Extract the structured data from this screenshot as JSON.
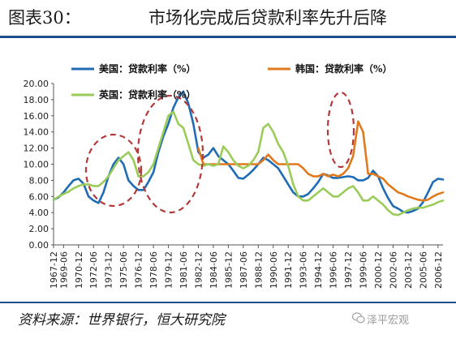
{
  "header": {
    "figure_label": "图表30：",
    "title": "市场化完成后贷款利率先升后降"
  },
  "footer": {
    "source": "资料来源：世界银行，恒大研究院",
    "watermark": "泽平宏观"
  },
  "chart_data": {
    "type": "line",
    "x": [
      "1967-12",
      "1968-12",
      "1969-06",
      "1969-12",
      "1970-06",
      "1970-12",
      "1971-06",
      "1971-12",
      "1972-06",
      "1972-12",
      "1973-06",
      "1973-12",
      "1974-06",
      "1974-12",
      "1975-06",
      "1975-12",
      "1976-06",
      "1976-12",
      "1977-06",
      "1977-12",
      "1978-06",
      "1978-12",
      "1979-06",
      "1979-12",
      "1980-06",
      "1980-12",
      "1981-06",
      "1981-12",
      "1982-06",
      "1982-12",
      "1983-06",
      "1983-12",
      "1984-06",
      "1984-12",
      "1985-06",
      "1985-12",
      "1986-06",
      "1986-12",
      "1987-06",
      "1987-12",
      "1988-06",
      "1988-12",
      "1989-06",
      "1989-12",
      "1990-06",
      "1990-12",
      "1991-06",
      "1991-12",
      "1992-06",
      "1992-12",
      "1993-06",
      "1993-12",
      "1994-06",
      "1994-12",
      "1995-06",
      "1995-12",
      "1996-06",
      "1996-12",
      "1997-06",
      "1997-12",
      "1998-06",
      "1998-12",
      "1999-06",
      "1999-12",
      "2000-06",
      "2000-12",
      "2001-06",
      "2001-12",
      "2002-06",
      "2002-12",
      "2003-06",
      "2003-12",
      "2004-06",
      "2004-12",
      "2005-06",
      "2005-12",
      "2006-06",
      "2006-12",
      "2007-06"
    ],
    "x_tick_labels": [
      "1967-12",
      "1969-06",
      "1970-12",
      "1972-06",
      "1973-12",
      "1975-06",
      "1976-12",
      "1978-06",
      "1979-12",
      "1981-06",
      "1982-12",
      "1984-06",
      "1985-12",
      "1987-06",
      "1988-12",
      "1990-06",
      "1991-12",
      "1993-06",
      "1994-12",
      "1996-06",
      "1997-12",
      "1999-06",
      "2000-12",
      "2002-06",
      "2003-12",
      "2005-06",
      "2006-12"
    ],
    "ylim": [
      0,
      20
    ],
    "yticks": [
      "0.00",
      "2.00",
      "4.00",
      "6.00",
      "8.00",
      "10.00",
      "12.00",
      "14.00",
      "16.00",
      "18.00",
      "20.00"
    ],
    "series": [
      {
        "name": "美国：贷款利率（%）",
        "color": "#1f6cb5",
        "values": [
          5.6,
          5.9,
          6.5,
          7.3,
          8.0,
          8.2,
          7.6,
          6.0,
          5.5,
          5.2,
          6.5,
          8.5,
          10.0,
          10.8,
          10.0,
          8.0,
          7.3,
          6.8,
          6.8,
          7.8,
          9.0,
          11.5,
          13.5,
          15.0,
          17.0,
          18.3,
          19.0,
          17.5,
          15.0,
          11.5,
          10.8,
          11.2,
          12.0,
          11.0,
          10.5,
          10.0,
          9.2,
          8.3,
          8.2,
          8.7,
          9.3,
          10.0,
          10.8,
          10.5,
          10.0,
          9.5,
          8.5,
          7.5,
          6.5,
          6.0,
          6.0,
          6.3,
          7.0,
          7.8,
          8.8,
          8.6,
          8.3,
          8.3,
          8.4,
          8.5,
          8.4,
          8.0,
          8.0,
          8.3,
          9.2,
          8.5,
          7.0,
          5.8,
          4.8,
          4.5,
          4.1,
          4.0,
          4.2,
          4.5,
          5.3,
          6.5,
          7.8,
          8.2,
          8.1
        ]
      },
      {
        "name": "韩国：贷款利率（%）",
        "color": "#e07a1f",
        "values": [
          null,
          null,
          null,
          null,
          null,
          null,
          null,
          null,
          null,
          null,
          null,
          null,
          null,
          null,
          null,
          null,
          null,
          null,
          null,
          null,
          null,
          null,
          null,
          null,
          null,
          null,
          null,
          null,
          null,
          12.0,
          10.0,
          10.0,
          10.0,
          10.0,
          10.0,
          10.0,
          10.0,
          10.0,
          10.0,
          10.0,
          10.0,
          10.0,
          10.5,
          11.2,
          10.5,
          10.0,
          10.0,
          10.0,
          10.0,
          10.0,
          9.5,
          8.8,
          8.5,
          8.5,
          8.8,
          8.5,
          8.7,
          8.5,
          8.8,
          9.5,
          11.0,
          15.3,
          14.0,
          8.8,
          8.8,
          8.5,
          8.2,
          7.5,
          7.0,
          6.5,
          6.3,
          6.0,
          5.8,
          5.6,
          5.5,
          5.6,
          6.0,
          6.3,
          6.5
        ]
      },
      {
        "name": "英国：贷款利率（%）",
        "color": "#9bcc5a",
        "values": [
          5.6,
          6.0,
          6.3,
          6.6,
          7.0,
          7.3,
          7.5,
          7.5,
          7.3,
          7.3,
          7.8,
          8.5,
          9.5,
          10.5,
          11.0,
          11.5,
          10.5,
          8.5,
          8.5,
          9.0,
          10.0,
          12.0,
          14.0,
          16.0,
          16.5,
          15.0,
          14.5,
          12.5,
          10.5,
          10.0,
          9.8,
          10.0,
          9.8,
          10.0,
          12.2,
          11.5,
          10.5,
          9.8,
          9.5,
          9.8,
          10.5,
          11.5,
          14.5,
          15.0,
          14.0,
          12.5,
          11.5,
          9.8,
          7.5,
          6.0,
          5.5,
          5.5,
          6.0,
          6.5,
          7.0,
          6.5,
          6.0,
          6.0,
          6.5,
          7.0,
          7.3,
          6.5,
          5.5,
          5.5,
          6.0,
          5.5,
          5.0,
          4.3,
          3.8,
          3.7,
          4.0,
          4.3,
          4.5,
          4.6,
          4.6,
          4.8,
          5.0,
          5.3,
          5.5
        ]
      }
    ],
    "legend": "top-inside",
    "grid": false,
    "annotations": "dashed red ellipses highlighting rate peaks"
  }
}
